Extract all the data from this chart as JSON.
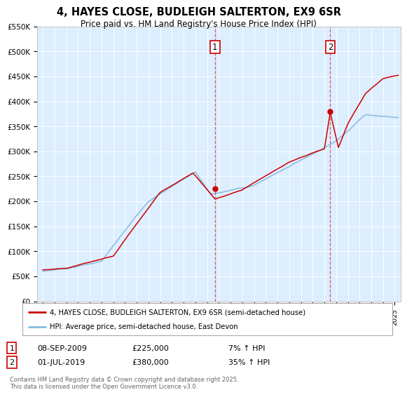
{
  "title": "4, HAYES CLOSE, BUDLEIGH SALTERTON, EX9 6SR",
  "subtitle": "Price paid vs. HM Land Registry's House Price Index (HPI)",
  "legend_line1": "4, HAYES CLOSE, BUDLEIGH SALTERTON, EX9 6SR (semi-detached house)",
  "legend_line2": "HPI: Average price, semi-detached house, East Devon",
  "red_color": "#cc0000",
  "blue_color": "#88bbdd",
  "annotation1_date": "08-SEP-2009",
  "annotation1_price": "£225,000",
  "annotation1_hpi": "7% ↑ HPI",
  "annotation2_date": "01-JUL-2019",
  "annotation2_price": "£380,000",
  "annotation2_hpi": "35% ↑ HPI",
  "vline1_x": 2009.67,
  "vline2_x": 2019.5,
  "marker1_y": 225000,
  "marker2_y": 380000,
  "ylim": [
    0,
    550000
  ],
  "xlim": [
    1994.5,
    2025.5
  ],
  "yticks": [
    0,
    50000,
    100000,
    150000,
    200000,
    250000,
    300000,
    350000,
    400000,
    450000,
    500000,
    550000
  ],
  "background_color": "#ffffff",
  "plot_bg_color": "#ddeeff",
  "footnote": "Contains HM Land Registry data © Crown copyright and database right 2025.\nThis data is licensed under the Open Government Licence v3.0."
}
